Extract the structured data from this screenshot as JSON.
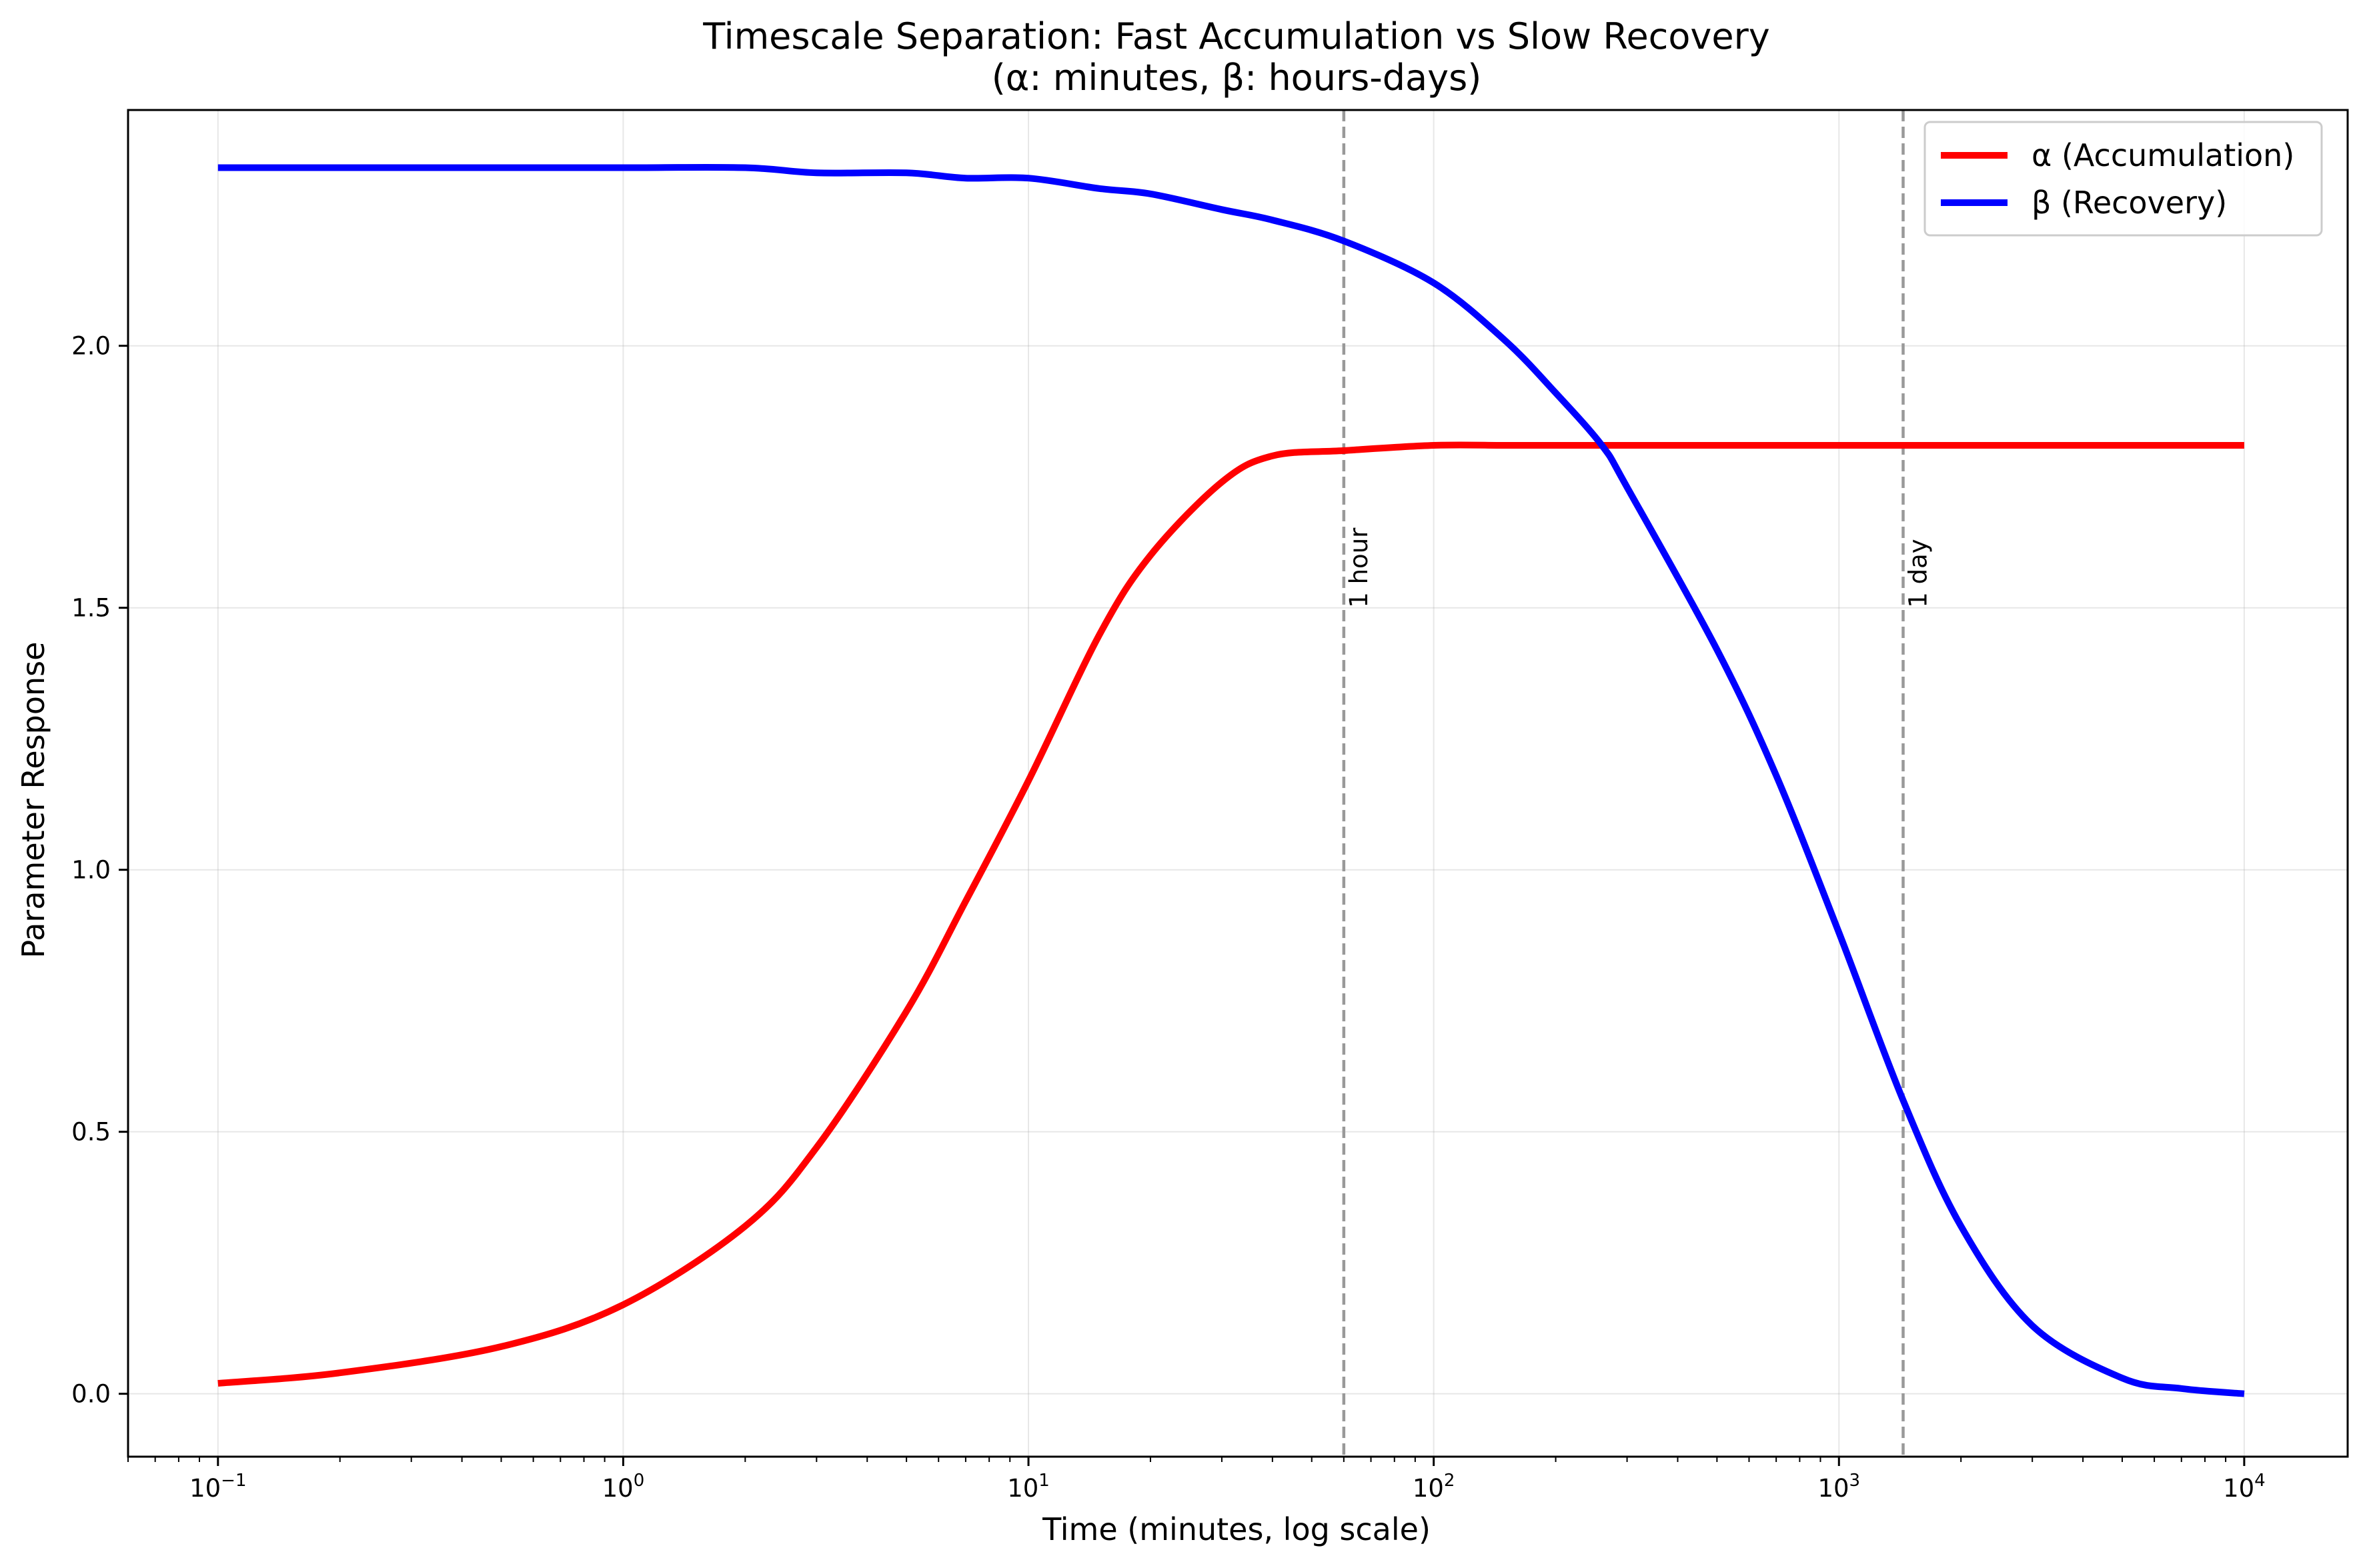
{
  "chart_data": {
    "type": "line",
    "title_line1": "Timescale Separation: Fast Accumulation vs Slow Recovery",
    "title_line2": "(α: minutes, β: hours-days)",
    "xlabel": "Time (minutes, log scale)",
    "ylabel": "Parameter Response",
    "xscale": "log",
    "xlim": [
      0.06,
      18000
    ],
    "ylim": [
      -0.12,
      2.45
    ],
    "grid": true,
    "legend_position": "top-right",
    "x_ticks": [
      {
        "base": "10",
        "exp": "−1",
        "value": 0.1
      },
      {
        "base": "10",
        "exp": "0",
        "value": 1
      },
      {
        "base": "10",
        "exp": "1",
        "value": 10
      },
      {
        "base": "10",
        "exp": "2",
        "value": 100
      },
      {
        "base": "10",
        "exp": "3",
        "value": 1000
      },
      {
        "base": "10",
        "exp": "4",
        "value": 10000
      }
    ],
    "y_ticks": [
      {
        "label": "0.0",
        "value": 0.0
      },
      {
        "label": "0.5",
        "value": 0.5
      },
      {
        "label": "1.0",
        "value": 1.0
      },
      {
        "label": "1.5",
        "value": 1.5
      },
      {
        "label": "2.0",
        "value": 2.0
      }
    ],
    "reference_lines": [
      {
        "x": 60,
        "label": "1 hour",
        "color": "#999999"
      },
      {
        "x": 1440,
        "label": "1 day",
        "color": "#999999"
      }
    ],
    "x": [
      0.1,
      0.2,
      0.5,
      1,
      2,
      3,
      5,
      7,
      10,
      15,
      20,
      30,
      40,
      60,
      100,
      150,
      200,
      260,
      300,
      500,
      700,
      1000,
      1440,
      2000,
      3000,
      5000,
      7000,
      10000
    ],
    "series": [
      {
        "name": "α (Accumulation)",
        "color": "#ff0000",
        "values": [
          0.02,
          0.04,
          0.09,
          0.17,
          0.32,
          0.47,
          0.73,
          0.94,
          1.17,
          1.45,
          1.6,
          1.74,
          1.79,
          1.8,
          1.81,
          1.81,
          1.81,
          1.81,
          1.81,
          1.81,
          1.81,
          1.81,
          1.81,
          1.81,
          1.81,
          1.81,
          1.81,
          1.81
        ]
      },
      {
        "name": "β (Recovery)",
        "color": "#0000ff",
        "values": [
          2.34,
          2.34,
          2.34,
          2.34,
          2.34,
          2.33,
          2.33,
          2.32,
          2.32,
          2.3,
          2.29,
          2.26,
          2.24,
          2.2,
          2.12,
          2.01,
          1.91,
          1.81,
          1.73,
          1.42,
          1.18,
          0.88,
          0.56,
          0.32,
          0.13,
          0.03,
          0.01,
          0.0
        ]
      }
    ]
  }
}
